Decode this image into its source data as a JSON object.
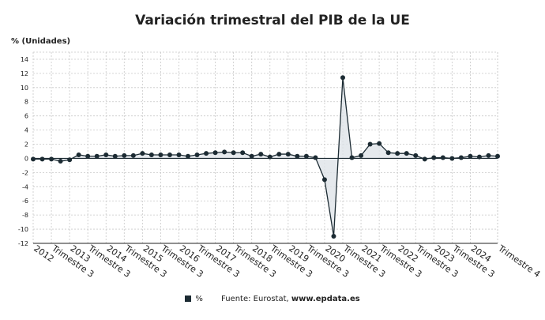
{
  "title": "Variación trimestral del PIB de la UE",
  "ylabel": "% (Unidades)",
  "legend": {
    "series_name": "%"
  },
  "source": {
    "label": "Fuente: Eurostat,",
    "domain": "www.epdata.es"
  },
  "colors": {
    "line": "#1c2b33",
    "fill": "#dfe3e8",
    "grid": "#c8c8c8",
    "axis": "#222222"
  },
  "chart_data": {
    "type": "line",
    "ylabel": "% (Unidades)",
    "ylim": [
      -12,
      15
    ],
    "yticks": [
      14,
      12,
      10,
      8,
      6,
      4,
      2,
      0,
      -2,
      -4,
      -6,
      -8,
      -10,
      -12
    ],
    "grid": true,
    "legend_position": "bottom",
    "x_tick_labels": [
      "2012",
      "Trimestre 3",
      "2013",
      "Trimestre 3",
      "2014",
      "Trimestre 3",
      "2015",
      "Trimestre 3",
      "2016",
      "Trimestre 3",
      "2017",
      "Trimestre 3",
      "2018",
      "Trimestre 3",
      "2019",
      "Trimestre 3",
      "2020",
      "Trimestre 3",
      "2021",
      "Trimestre 3",
      "2022",
      "Trimestre 3",
      "2023",
      "Trimestre 3",
      "2024",
      "Trimestre 4"
    ],
    "x": [
      "2012 T1",
      "2012 T2",
      "2012 T3",
      "2012 T4",
      "2013 T1",
      "2013 T2",
      "2013 T3",
      "2013 T4",
      "2014 T1",
      "2014 T2",
      "2014 T3",
      "2014 T4",
      "2015 T1",
      "2015 T2",
      "2015 T3",
      "2015 T4",
      "2016 T1",
      "2016 T2",
      "2016 T3",
      "2016 T4",
      "2017 T1",
      "2017 T2",
      "2017 T3",
      "2017 T4",
      "2018 T1",
      "2018 T2",
      "2018 T3",
      "2018 T4",
      "2019 T1",
      "2019 T2",
      "2019 T3",
      "2019 T4",
      "2020 T1",
      "2020 T2",
      "2020 T3",
      "2020 T4",
      "2021 T1",
      "2021 T2",
      "2021 T3",
      "2021 T4",
      "2022 T1",
      "2022 T2",
      "2022 T3",
      "2022 T4",
      "2023 T1",
      "2023 T2",
      "2023 T3",
      "2023 T4",
      "2024 T1",
      "2024 T2",
      "2024 T3",
      "2024 T4"
    ],
    "series": [
      {
        "values": [
          -0.1,
          -0.1,
          -0.1,
          -0.4,
          -0.2,
          0.5,
          0.3,
          0.3,
          0.5,
          0.3,
          0.4,
          0.4,
          0.7,
          0.5,
          0.5,
          0.5,
          0.5,
          0.3,
          0.5,
          0.7,
          0.8,
          0.9,
          0.8,
          0.8,
          0.3,
          0.6,
          0.2,
          0.6,
          0.6,
          0.3,
          0.3,
          0.1,
          -3.0,
          -11.0,
          11.4,
          0.1,
          0.4,
          2.0,
          2.1,
          0.8,
          0.7,
          0.7,
          0.4,
          -0.1,
          0.1,
          0.1,
          0.0,
          0.1,
          0.3,
          0.2,
          0.4,
          0.3
        ]
      }
    ]
  }
}
